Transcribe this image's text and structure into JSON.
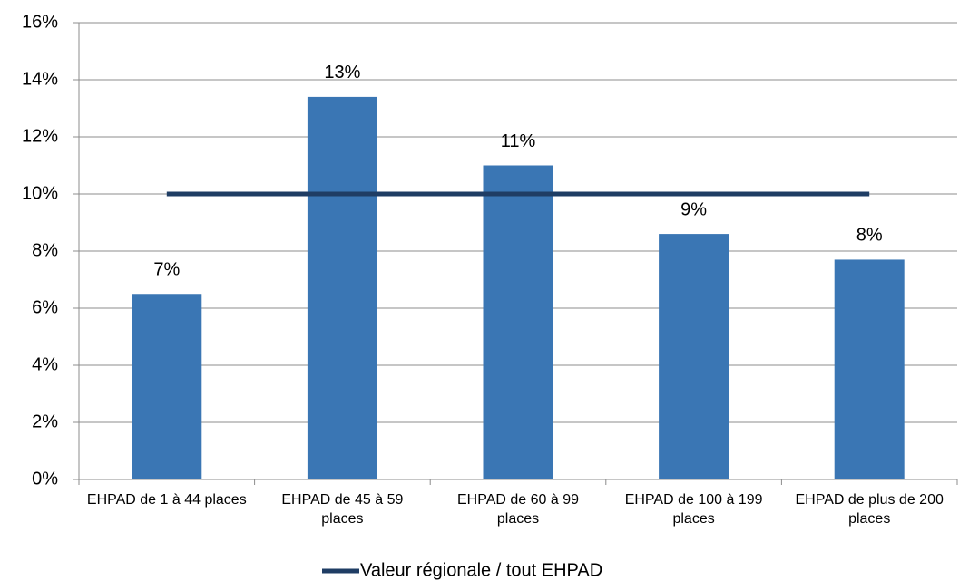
{
  "chart_data": {
    "type": "bar",
    "categories": [
      "EHPAD de 1 à 44 places",
      "EHPAD de 45 à 59 places",
      "EHPAD de 60 à 99 places",
      "EHPAD de 100 à 199 places",
      "EHPAD de plus de 200 places"
    ],
    "values": [
      6.5,
      13.4,
      11.0,
      8.6,
      7.7
    ],
    "value_labels": [
      "7%",
      "13%",
      "11%",
      "9%",
      "8%"
    ],
    "color": "#3a76b4",
    "lines": [
      {
        "name": "Valeur régionale / tout EHPAD",
        "color": "#1f3d64",
        "values": [
          10,
          10,
          10,
          10,
          10
        ]
      }
    ],
    "ylim": [
      0,
      16
    ],
    "yticks": [
      {
        "value": 0,
        "label": "0%"
      },
      {
        "value": 2,
        "label": "2%"
      },
      {
        "value": 4,
        "label": "4%"
      },
      {
        "value": 6,
        "label": "6%"
      },
      {
        "value": 8,
        "label": "8%"
      },
      {
        "value": 10,
        "label": "10%"
      },
      {
        "value": 12,
        "label": "12%"
      },
      {
        "value": 14,
        "label": "14%"
      },
      {
        "value": 16,
        "label": "16%"
      }
    ],
    "grid": true,
    "legend": "bottom"
  }
}
